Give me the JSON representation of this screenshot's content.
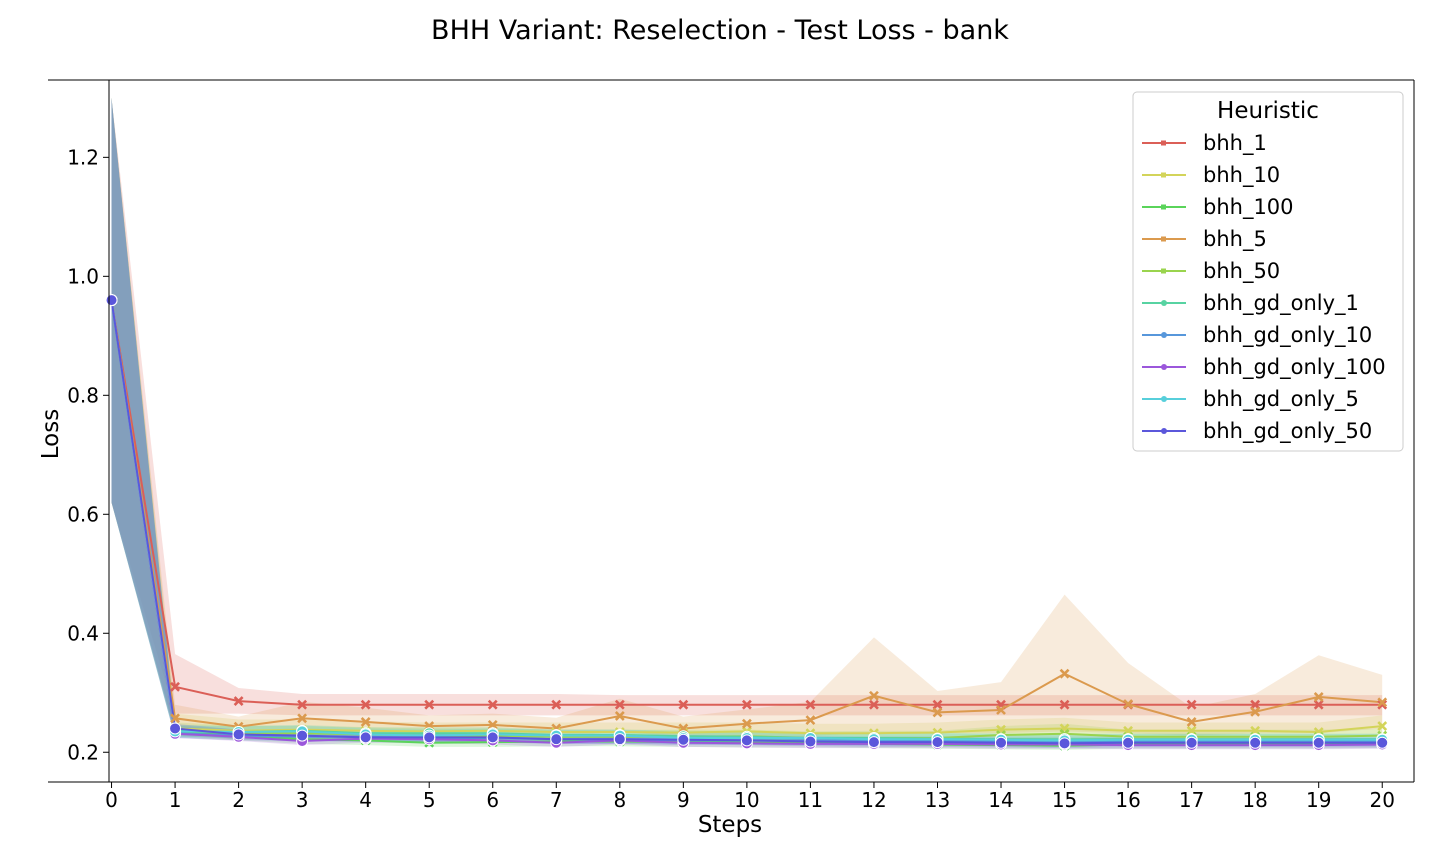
{
  "chart_data": {
    "type": "line",
    "title": "BHH Variant: Reselection - Test Loss - bank",
    "xlabel": "Steps",
    "ylabel": "Loss",
    "x": [
      0,
      1,
      2,
      3,
      4,
      5,
      6,
      7,
      8,
      9,
      10,
      11,
      12,
      13,
      14,
      15,
      16,
      17,
      18,
      19,
      20
    ],
    "xlim": [
      -1,
      20.5
    ],
    "ylim": [
      0.15,
      1.33
    ],
    "yticks": [
      0.2,
      0.4,
      0.6,
      0.8,
      1.0,
      1.2
    ],
    "grid": false,
    "legend": {
      "title": "Heuristic",
      "placement": "top-right"
    },
    "series": [
      {
        "name": "bhh_1",
        "color": "#db5f57",
        "marker": "x",
        "values": [
          0.96,
          0.31,
          0.286,
          0.28,
          0.28,
          0.28,
          0.28,
          0.28,
          0.28,
          0.28,
          0.28,
          0.28,
          0.28,
          0.28,
          0.28,
          0.28,
          0.28,
          0.28,
          0.28,
          0.28,
          0.28
        ],
        "upper": [
          1.3,
          0.365,
          0.308,
          0.298,
          0.298,
          0.298,
          0.298,
          0.298,
          0.296,
          0.296,
          0.296,
          0.296,
          0.296,
          0.296,
          0.296,
          0.296,
          0.296,
          0.296,
          0.296,
          0.296,
          0.296
        ],
        "lower": [
          0.62,
          0.265,
          0.265,
          0.262,
          0.262,
          0.262,
          0.262,
          0.262,
          0.262,
          0.262,
          0.262,
          0.262,
          0.262,
          0.262,
          0.262,
          0.262,
          0.262,
          0.262,
          0.262,
          0.262,
          0.262
        ]
      },
      {
        "name": "bhh_10",
        "color": "#d3d45a",
        "marker": "x",
        "values": [
          0.96,
          0.24,
          0.236,
          0.238,
          0.236,
          0.235,
          0.236,
          0.234,
          0.234,
          0.233,
          0.235,
          0.232,
          0.232,
          0.233,
          0.238,
          0.24,
          0.236,
          0.236,
          0.236,
          0.234,
          0.244
        ],
        "upper": [
          1.3,
          0.265,
          0.255,
          0.255,
          0.252,
          0.25,
          0.25,
          0.25,
          0.25,
          0.25,
          0.25,
          0.248,
          0.248,
          0.25,
          0.255,
          0.258,
          0.25,
          0.25,
          0.25,
          0.25,
          0.262
        ],
        "lower": [
          0.62,
          0.228,
          0.222,
          0.222,
          0.222,
          0.222,
          0.222,
          0.222,
          0.222,
          0.222,
          0.222,
          0.22,
          0.22,
          0.22,
          0.222,
          0.222,
          0.222,
          0.222,
          0.222,
          0.222,
          0.228
        ]
      },
      {
        "name": "bhh_100",
        "color": "#5ad45a",
        "marker": "x",
        "values": [
          0.96,
          0.234,
          0.228,
          0.222,
          0.22,
          0.216,
          0.217,
          0.218,
          0.218,
          0.217,
          0.216,
          0.215,
          0.214,
          0.213,
          0.212,
          0.211,
          0.213,
          0.213,
          0.213,
          0.213,
          0.214
        ],
        "upper": [
          1.3,
          0.245,
          0.238,
          0.232,
          0.228,
          0.225,
          0.225,
          0.225,
          0.225,
          0.224,
          0.224,
          0.222,
          0.222,
          0.22,
          0.22,
          0.22,
          0.22,
          0.22,
          0.22,
          0.22,
          0.22
        ],
        "lower": [
          0.62,
          0.225,
          0.22,
          0.214,
          0.212,
          0.209,
          0.209,
          0.21,
          0.21,
          0.209,
          0.208,
          0.208,
          0.207,
          0.206,
          0.205,
          0.204,
          0.206,
          0.206,
          0.206,
          0.206,
          0.207
        ]
      },
      {
        "name": "bhh_5",
        "color": "#db9a4e",
        "marker": "x",
        "values": [
          0.96,
          0.257,
          0.243,
          0.257,
          0.251,
          0.244,
          0.246,
          0.24,
          0.261,
          0.24,
          0.248,
          0.254,
          0.295,
          0.267,
          0.271,
          0.332,
          0.281,
          0.251,
          0.268,
          0.293,
          0.284
        ],
        "upper": [
          1.3,
          0.28,
          0.26,
          0.285,
          0.275,
          0.262,
          0.265,
          0.258,
          0.29,
          0.26,
          0.272,
          0.285,
          0.393,
          0.303,
          0.318,
          0.465,
          0.35,
          0.275,
          0.298,
          0.363,
          0.33
        ],
        "lower": [
          0.62,
          0.236,
          0.228,
          0.232,
          0.228,
          0.228,
          0.228,
          0.225,
          0.235,
          0.225,
          0.228,
          0.228,
          0.232,
          0.232,
          0.232,
          0.235,
          0.232,
          0.228,
          0.232,
          0.232,
          0.24
        ]
      },
      {
        "name": "bhh_50",
        "color": "#9ad44e",
        "marker": "x",
        "values": [
          0.96,
          0.238,
          0.232,
          0.232,
          0.23,
          0.228,
          0.228,
          0.226,
          0.226,
          0.226,
          0.227,
          0.224,
          0.224,
          0.224,
          0.229,
          0.231,
          0.226,
          0.226,
          0.226,
          0.226,
          0.228
        ],
        "upper": [
          1.3,
          0.25,
          0.245,
          0.244,
          0.242,
          0.24,
          0.24,
          0.238,
          0.238,
          0.238,
          0.238,
          0.235,
          0.236,
          0.236,
          0.244,
          0.248,
          0.238,
          0.238,
          0.238,
          0.238,
          0.24
        ],
        "lower": [
          0.62,
          0.228,
          0.222,
          0.222,
          0.22,
          0.218,
          0.218,
          0.216,
          0.216,
          0.216,
          0.216,
          0.214,
          0.214,
          0.214,
          0.216,
          0.216,
          0.216,
          0.216,
          0.216,
          0.216,
          0.218
        ]
      },
      {
        "name": "bhh_gd_only_1",
        "color": "#57d3a2",
        "marker": "o",
        "values": [
          0.96,
          0.236,
          0.234,
          0.236,
          0.232,
          0.232,
          0.232,
          0.229,
          0.229,
          0.227,
          0.226,
          0.224,
          0.224,
          0.223,
          0.222,
          0.222,
          0.222,
          0.222,
          0.222,
          0.222,
          0.222
        ],
        "upper": [
          1.3,
          0.246,
          0.244,
          0.246,
          0.242,
          0.242,
          0.242,
          0.238,
          0.238,
          0.236,
          0.235,
          0.233,
          0.233,
          0.232,
          0.231,
          0.231,
          0.231,
          0.231,
          0.231,
          0.231,
          0.231
        ],
        "lower": [
          0.62,
          0.226,
          0.224,
          0.226,
          0.222,
          0.222,
          0.222,
          0.22,
          0.22,
          0.218,
          0.217,
          0.215,
          0.215,
          0.214,
          0.213,
          0.213,
          0.213,
          0.213,
          0.213,
          0.213,
          0.213
        ]
      },
      {
        "name": "bhh_gd_only_10",
        "color": "#5797db",
        "marker": "o",
        "values": [
          0.96,
          0.232,
          0.228,
          0.226,
          0.226,
          0.224,
          0.224,
          0.222,
          0.222,
          0.22,
          0.22,
          0.22,
          0.219,
          0.219,
          0.218,
          0.218,
          0.218,
          0.218,
          0.218,
          0.218,
          0.218
        ],
        "upper": [
          1.3,
          0.24,
          0.236,
          0.234,
          0.234,
          0.232,
          0.232,
          0.23,
          0.23,
          0.228,
          0.228,
          0.228,
          0.227,
          0.227,
          0.226,
          0.226,
          0.226,
          0.226,
          0.226,
          0.226,
          0.226
        ],
        "lower": [
          0.62,
          0.224,
          0.22,
          0.218,
          0.218,
          0.216,
          0.216,
          0.214,
          0.214,
          0.212,
          0.212,
          0.212,
          0.211,
          0.211,
          0.21,
          0.21,
          0.21,
          0.21,
          0.21,
          0.21,
          0.21
        ]
      },
      {
        "name": "bhh_gd_only_100",
        "color": "#9b57db",
        "marker": "o",
        "values": [
          0.96,
          0.231,
          0.226,
          0.219,
          0.223,
          0.222,
          0.22,
          0.216,
          0.22,
          0.216,
          0.215,
          0.214,
          0.214,
          0.214,
          0.213,
          0.213,
          0.212,
          0.212,
          0.212,
          0.212,
          0.213
        ],
        "upper": [
          1.3,
          0.238,
          0.233,
          0.227,
          0.23,
          0.229,
          0.227,
          0.223,
          0.227,
          0.223,
          0.222,
          0.221,
          0.221,
          0.221,
          0.22,
          0.22,
          0.219,
          0.219,
          0.219,
          0.219,
          0.22
        ],
        "lower": [
          0.62,
          0.224,
          0.219,
          0.212,
          0.216,
          0.215,
          0.213,
          0.209,
          0.213,
          0.209,
          0.208,
          0.207,
          0.207,
          0.207,
          0.206,
          0.206,
          0.205,
          0.205,
          0.205,
          0.205,
          0.206
        ]
      },
      {
        "name": "bhh_gd_only_5",
        "color": "#57cfdb",
        "marker": "o",
        "values": [
          0.96,
          0.235,
          0.234,
          0.235,
          0.23,
          0.228,
          0.23,
          0.228,
          0.228,
          0.224,
          0.224,
          0.224,
          0.222,
          0.222,
          0.221,
          0.22,
          0.221,
          0.221,
          0.221,
          0.221,
          0.221
        ],
        "upper": [
          1.3,
          0.245,
          0.244,
          0.245,
          0.24,
          0.238,
          0.24,
          0.238,
          0.238,
          0.234,
          0.234,
          0.234,
          0.232,
          0.232,
          0.231,
          0.23,
          0.231,
          0.231,
          0.231,
          0.231,
          0.231
        ],
        "lower": [
          0.62,
          0.225,
          0.224,
          0.225,
          0.22,
          0.218,
          0.22,
          0.218,
          0.218,
          0.214,
          0.214,
          0.214,
          0.212,
          0.212,
          0.211,
          0.21,
          0.211,
          0.211,
          0.211,
          0.211,
          0.211
        ]
      },
      {
        "name": "bhh_gd_only_50",
        "color": "#5b57db",
        "marker": "o",
        "values": [
          0.96,
          0.24,
          0.23,
          0.228,
          0.225,
          0.225,
          0.225,
          0.222,
          0.222,
          0.221,
          0.22,
          0.218,
          0.217,
          0.217,
          0.216,
          0.215,
          0.216,
          0.216,
          0.216,
          0.216,
          0.216
        ],
        "upper": [
          1.3,
          0.248,
          0.238,
          0.236,
          0.233,
          0.233,
          0.233,
          0.23,
          0.23,
          0.229,
          0.228,
          0.226,
          0.225,
          0.225,
          0.224,
          0.223,
          0.224,
          0.224,
          0.224,
          0.224,
          0.224
        ],
        "lower": [
          0.62,
          0.232,
          0.222,
          0.22,
          0.217,
          0.217,
          0.217,
          0.214,
          0.214,
          0.213,
          0.212,
          0.21,
          0.209,
          0.209,
          0.208,
          0.207,
          0.208,
          0.208,
          0.208,
          0.208,
          0.208
        ]
      }
    ]
  }
}
